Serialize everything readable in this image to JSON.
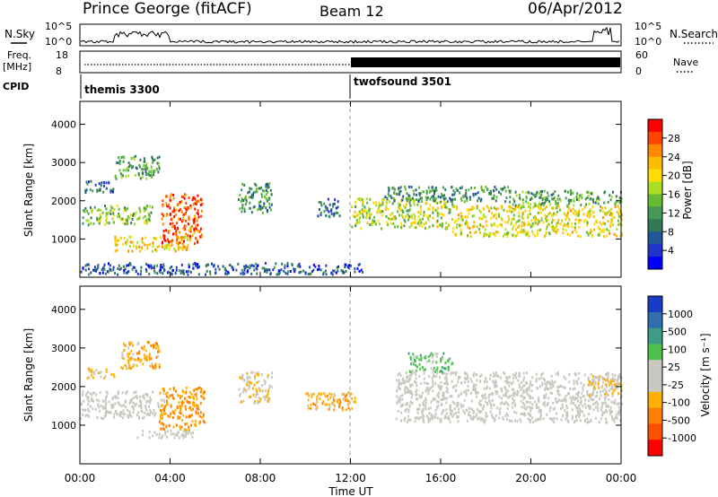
{
  "header": {
    "station": "Prince George (fitACF)",
    "beam": "Beam 12",
    "date": "06/Apr/2012"
  },
  "noise_panel": {
    "left_label": "N.Sky",
    "right_label": "N.Search",
    "ticks": [
      "10^5",
      "10^0"
    ]
  },
  "freq_panel": {
    "label_top": "Freq.",
    "label_unit": "[MHz]",
    "left_ticks": [
      "18",
      "8"
    ],
    "right_ticks": [
      "60",
      "0"
    ],
    "right_label": "Nave"
  },
  "cpid": {
    "label": "CPID",
    "segments": [
      {
        "name": "themis 3300",
        "start_hour": 0,
        "end_hour": 12
      },
      {
        "name": "twofsound 3501",
        "start_hour": 12,
        "end_hour": 24
      }
    ]
  },
  "colorbars": {
    "power": {
      "label": "Power [dB]",
      "ticks": [
        "28",
        "24",
        "20",
        "16",
        "12",
        "8",
        "4"
      ],
      "colors": [
        "#ff0000",
        "#ff4400",
        "#ff8800",
        "#ffbb00",
        "#ffdd00",
        "#aadd22",
        "#66bb33",
        "#449955",
        "#337755",
        "#225599",
        "#2233cc",
        "#0000ff"
      ]
    },
    "velocity": {
      "label": "Velocity [m s⁻¹]",
      "ticks": [
        "1000",
        "500",
        "100",
        "25",
        "-25",
        "-100",
        "-500",
        "-1000"
      ],
      "colors": [
        "#1a3ac8",
        "#2f6fb0",
        "#3d9b8a",
        "#4cc24c",
        "#c8c8c0",
        "#c8c8c0",
        "#ffb000",
        "#ff8000",
        "#ff5000",
        "#ff0000"
      ]
    }
  },
  "axes": {
    "xlabel": "Time UT",
    "ylabel": "Slant Range [km]",
    "xticks": [
      "00:00",
      "04:00",
      "08:00",
      "12:00",
      "16:00",
      "20:00",
      "00:00"
    ],
    "yticks": [
      "1000",
      "2000",
      "3000",
      "4000"
    ]
  },
  "chart_data": [
    {
      "type": "heatmap",
      "title": "Power",
      "xlabel": "Time UT",
      "ylabel": "Slant Range [km]",
      "xlim": [
        0,
        24
      ],
      "ylim": [
        0,
        4600
      ],
      "colorbar_label": "Power [dB]",
      "colorbar_range": [
        0,
        30
      ],
      "features": [
        {
          "t0": 0.1,
          "t1": 3.2,
          "r0": 1400,
          "r1": 1900,
          "value": 14
        },
        {
          "t0": 0.2,
          "t1": 1.5,
          "r0": 2250,
          "r1": 2550,
          "value": 8
        },
        {
          "t0": 1.5,
          "t1": 3.5,
          "r0": 2600,
          "r1": 3200,
          "value": 12
        },
        {
          "t0": 1.5,
          "t1": 4.8,
          "r0": 700,
          "r1": 1100,
          "value": 20
        },
        {
          "t0": 3.6,
          "t1": 5.4,
          "r0": 900,
          "r1": 2200,
          "value": 26
        },
        {
          "t0": 7.0,
          "t1": 8.5,
          "r0": 1700,
          "r1": 2500,
          "value": 10
        },
        {
          "t0": 10.5,
          "t1": 11.5,
          "r0": 1600,
          "r1": 2100,
          "value": 8
        },
        {
          "t0": 12.0,
          "t1": 16.5,
          "r0": 1300,
          "r1": 2100,
          "value": 16
        },
        {
          "t0": 13.5,
          "t1": 19.0,
          "r0": 2000,
          "r1": 2400,
          "value": 10
        },
        {
          "t0": 16.5,
          "t1": 24.0,
          "r0": 1100,
          "r1": 1900,
          "value": 18
        },
        {
          "t0": 19.0,
          "t1": 24.0,
          "r0": 1900,
          "r1": 2300,
          "value": 12
        },
        {
          "t0": 0.0,
          "t1": 12.5,
          "r0": 100,
          "r1": 400,
          "value": 6
        }
      ]
    },
    {
      "type": "heatmap",
      "title": "Velocity",
      "xlabel": "Time UT",
      "ylabel": "Slant Range [km]",
      "xlim": [
        0,
        24
      ],
      "ylim": [
        0,
        4600
      ],
      "colorbar_label": "Velocity [m s⁻¹]",
      "colorbar_range": [
        -1000,
        1000
      ],
      "features": [
        {
          "t0": 0.0,
          "t1": 3.8,
          "r0": 1200,
          "r1": 1900,
          "value": 0
        },
        {
          "t0": 0.2,
          "t1": 1.5,
          "r0": 2250,
          "r1": 2500,
          "value": -200
        },
        {
          "t0": 1.8,
          "t1": 3.5,
          "r0": 2500,
          "r1": 3200,
          "value": -300
        },
        {
          "t0": 3.5,
          "t1": 5.5,
          "r0": 900,
          "r1": 2000,
          "value": -400
        },
        {
          "t0": 2.5,
          "t1": 5.0,
          "r0": 700,
          "r1": 900,
          "value": 0
        },
        {
          "t0": 7.0,
          "t1": 8.5,
          "r0": 1600,
          "r1": 2400,
          "value": -150
        },
        {
          "t0": 10.0,
          "t1": 12.2,
          "r0": 1400,
          "r1": 1900,
          "value": -300
        },
        {
          "t0": 14.0,
          "t1": 24.0,
          "r0": 1100,
          "r1": 2400,
          "value": 0
        },
        {
          "t0": 14.5,
          "t1": 16.5,
          "r0": 2400,
          "r1": 2900,
          "value": 300
        },
        {
          "t0": 22.5,
          "t1": 24.0,
          "r0": 1800,
          "r1": 2300,
          "value": -200
        }
      ]
    }
  ]
}
